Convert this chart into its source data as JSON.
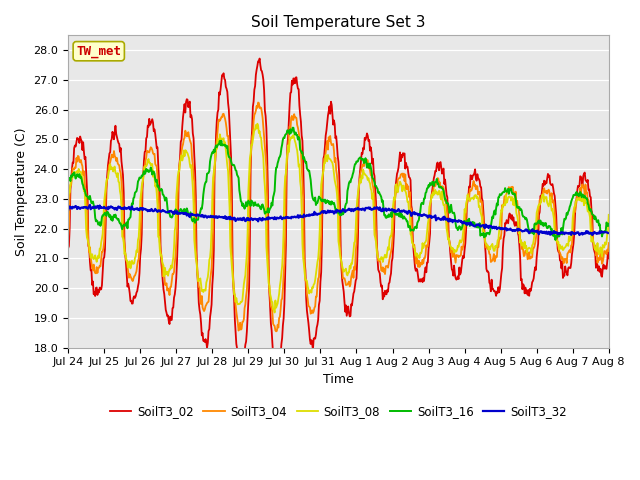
{
  "title": "Soil Temperature Set 3",
  "xlabel": "Time",
  "ylabel": "Soil Temperature (C)",
  "ylim": [
    18.0,
    28.5
  ],
  "yticks": [
    18.0,
    19.0,
    20.0,
    21.0,
    22.0,
    23.0,
    24.0,
    25.0,
    26.0,
    27.0,
    28.0
  ],
  "xtick_labels": [
    "Jul 24",
    "Jul 25",
    "Jul 26",
    "Jul 27",
    "Jul 28",
    "Jul 29",
    "Jul 30",
    "Jul 31",
    "Aug 1",
    "Aug 2",
    "Aug 3",
    "Aug 4",
    "Aug 5",
    "Aug 6",
    "Aug 7",
    "Aug 8"
  ],
  "legend_labels": [
    "SoilT3_02",
    "SoilT3_04",
    "SoilT3_08",
    "SoilT3_16",
    "SoilT3_32"
  ],
  "colors": [
    "#dd0000",
    "#ff8800",
    "#dddd00",
    "#00bb00",
    "#0000cc"
  ],
  "annotation_text": "TW_met",
  "annotation_color": "#cc0000",
  "annotation_bg": "#ffffcc",
  "plot_bg": "#e8e8e8",
  "title_fontsize": 11,
  "axis_fontsize": 9,
  "tick_fontsize": 8
}
